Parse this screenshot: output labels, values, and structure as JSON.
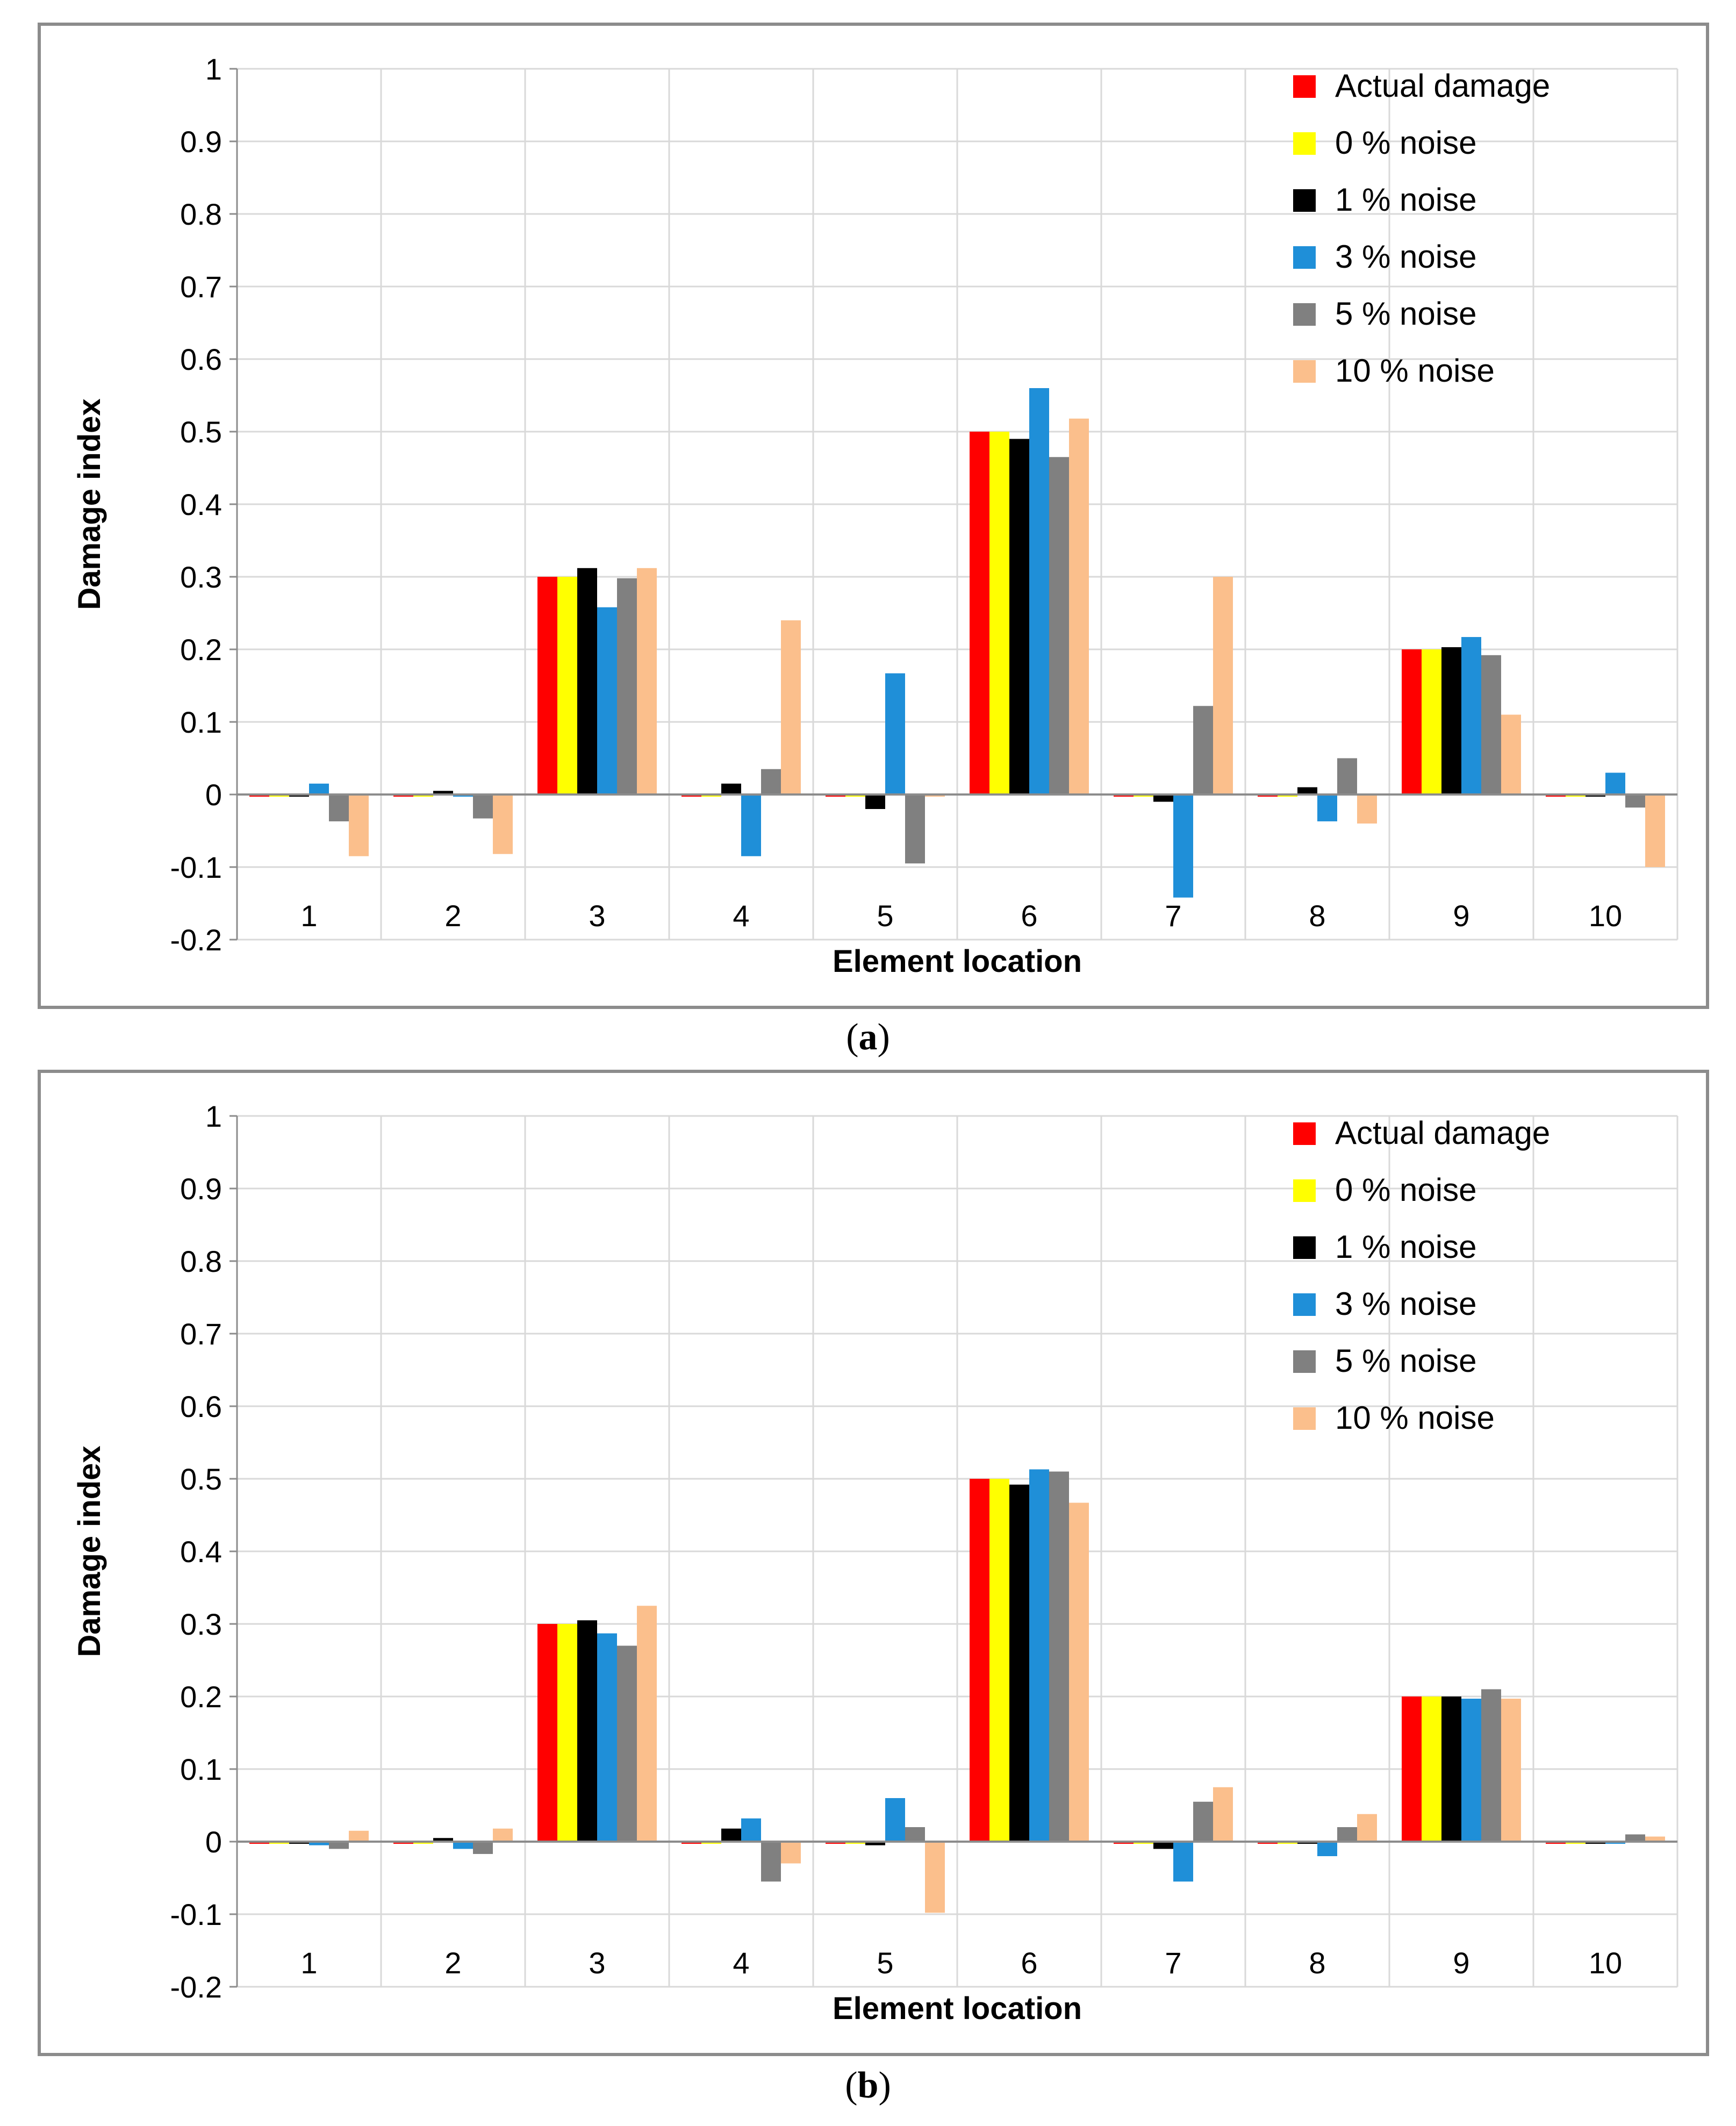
{
  "chart_data": [
    {
      "type": "bar",
      "panel_label": "a",
      "xlabel": "Element location",
      "ylabel": "Damage index",
      "ylim": [
        -0.2,
        1
      ],
      "yticks": [
        "1",
        "0.9",
        "0.8",
        "0.7",
        "0.6",
        "0.5",
        "0.4",
        "0.3",
        "0.2",
        "0.1",
        "0",
        "-0.1",
        "-0.2"
      ],
      "grid": true,
      "legend_position": "top-right",
      "categories": [
        "1",
        "2",
        "3",
        "4",
        "5",
        "6",
        "7",
        "8",
        "9",
        "10"
      ],
      "series": [
        {
          "name": "Actual damage",
          "color": "#ff0000",
          "values": [
            0,
            0,
            0.3,
            0,
            0,
            0.5,
            0,
            0,
            0.2,
            0
          ]
        },
        {
          "name": "0 % noise",
          "color": "#ffff00",
          "values": [
            -0.003,
            -0.003,
            0.3,
            -0.003,
            -0.003,
            0.5,
            -0.003,
            -0.003,
            0.2,
            -0.003
          ]
        },
        {
          "name": "1 % noise",
          "color": "#000000",
          "values": [
            0,
            0.005,
            0.312,
            0.015,
            -0.02,
            0.49,
            -0.01,
            0.01,
            0.203,
            0
          ]
        },
        {
          "name": "3 % noise",
          "color": "#1f8fd8",
          "values": [
            0.015,
            0,
            0.258,
            -0.085,
            0.167,
            0.56,
            -0.142,
            -0.037,
            0.217,
            0.03
          ]
        },
        {
          "name": "5 % noise",
          "color": "#808080",
          "values": [
            -0.037,
            -0.033,
            0.298,
            0.035,
            -0.095,
            0.465,
            0.122,
            0.05,
            0.192,
            -0.018
          ]
        },
        {
          "name": "10 % noise",
          "color": "#fbbf8c",
          "values": [
            -0.085,
            -0.082,
            0.312,
            0.24,
            -0.003,
            0.518,
            0.3,
            -0.04,
            0.11,
            -0.1
          ]
        }
      ]
    },
    {
      "type": "bar",
      "panel_label": "b",
      "xlabel": "Element location",
      "ylabel": "Damage index",
      "ylim": [
        -0.2,
        1
      ],
      "yticks": [
        "1",
        "0.9",
        "0.8",
        "0.7",
        "0.6",
        "0.5",
        "0.4",
        "0.3",
        "0.2",
        "0.1",
        "0",
        "-0.1",
        "-0.2"
      ],
      "grid": true,
      "legend_position": "top-right",
      "categories": [
        "1",
        "2",
        "3",
        "4",
        "5",
        "6",
        "7",
        "8",
        "9",
        "10"
      ],
      "series": [
        {
          "name": "Actual damage",
          "color": "#ff0000",
          "values": [
            0,
            0,
            0.3,
            0,
            0,
            0.5,
            0,
            0,
            0.2,
            0
          ]
        },
        {
          "name": "0 % noise",
          "color": "#ffff00",
          "values": [
            0,
            0,
            0.3,
            0,
            0,
            0.5,
            0,
            0,
            0.2,
            0
          ]
        },
        {
          "name": "1 % noise",
          "color": "#000000",
          "values": [
            0,
            0.005,
            0.305,
            0.018,
            -0.005,
            0.492,
            -0.01,
            0,
            0.2,
            0
          ]
        },
        {
          "name": "3 % noise",
          "color": "#1f8fd8",
          "values": [
            -0.005,
            -0.01,
            0.287,
            0.032,
            0.06,
            0.513,
            -0.055,
            -0.02,
            0.197,
            0
          ]
        },
        {
          "name": "5 % noise",
          "color": "#808080",
          "values": [
            -0.01,
            -0.017,
            0.27,
            -0.055,
            0.02,
            0.51,
            0.055,
            0.02,
            0.21,
            0.01
          ]
        },
        {
          "name": "10 % noise",
          "color": "#fbbf8c",
          "values": [
            0.015,
            0.018,
            0.325,
            -0.03,
            -0.098,
            0.467,
            0.075,
            0.038,
            0.197,
            0.007
          ]
        }
      ]
    }
  ]
}
